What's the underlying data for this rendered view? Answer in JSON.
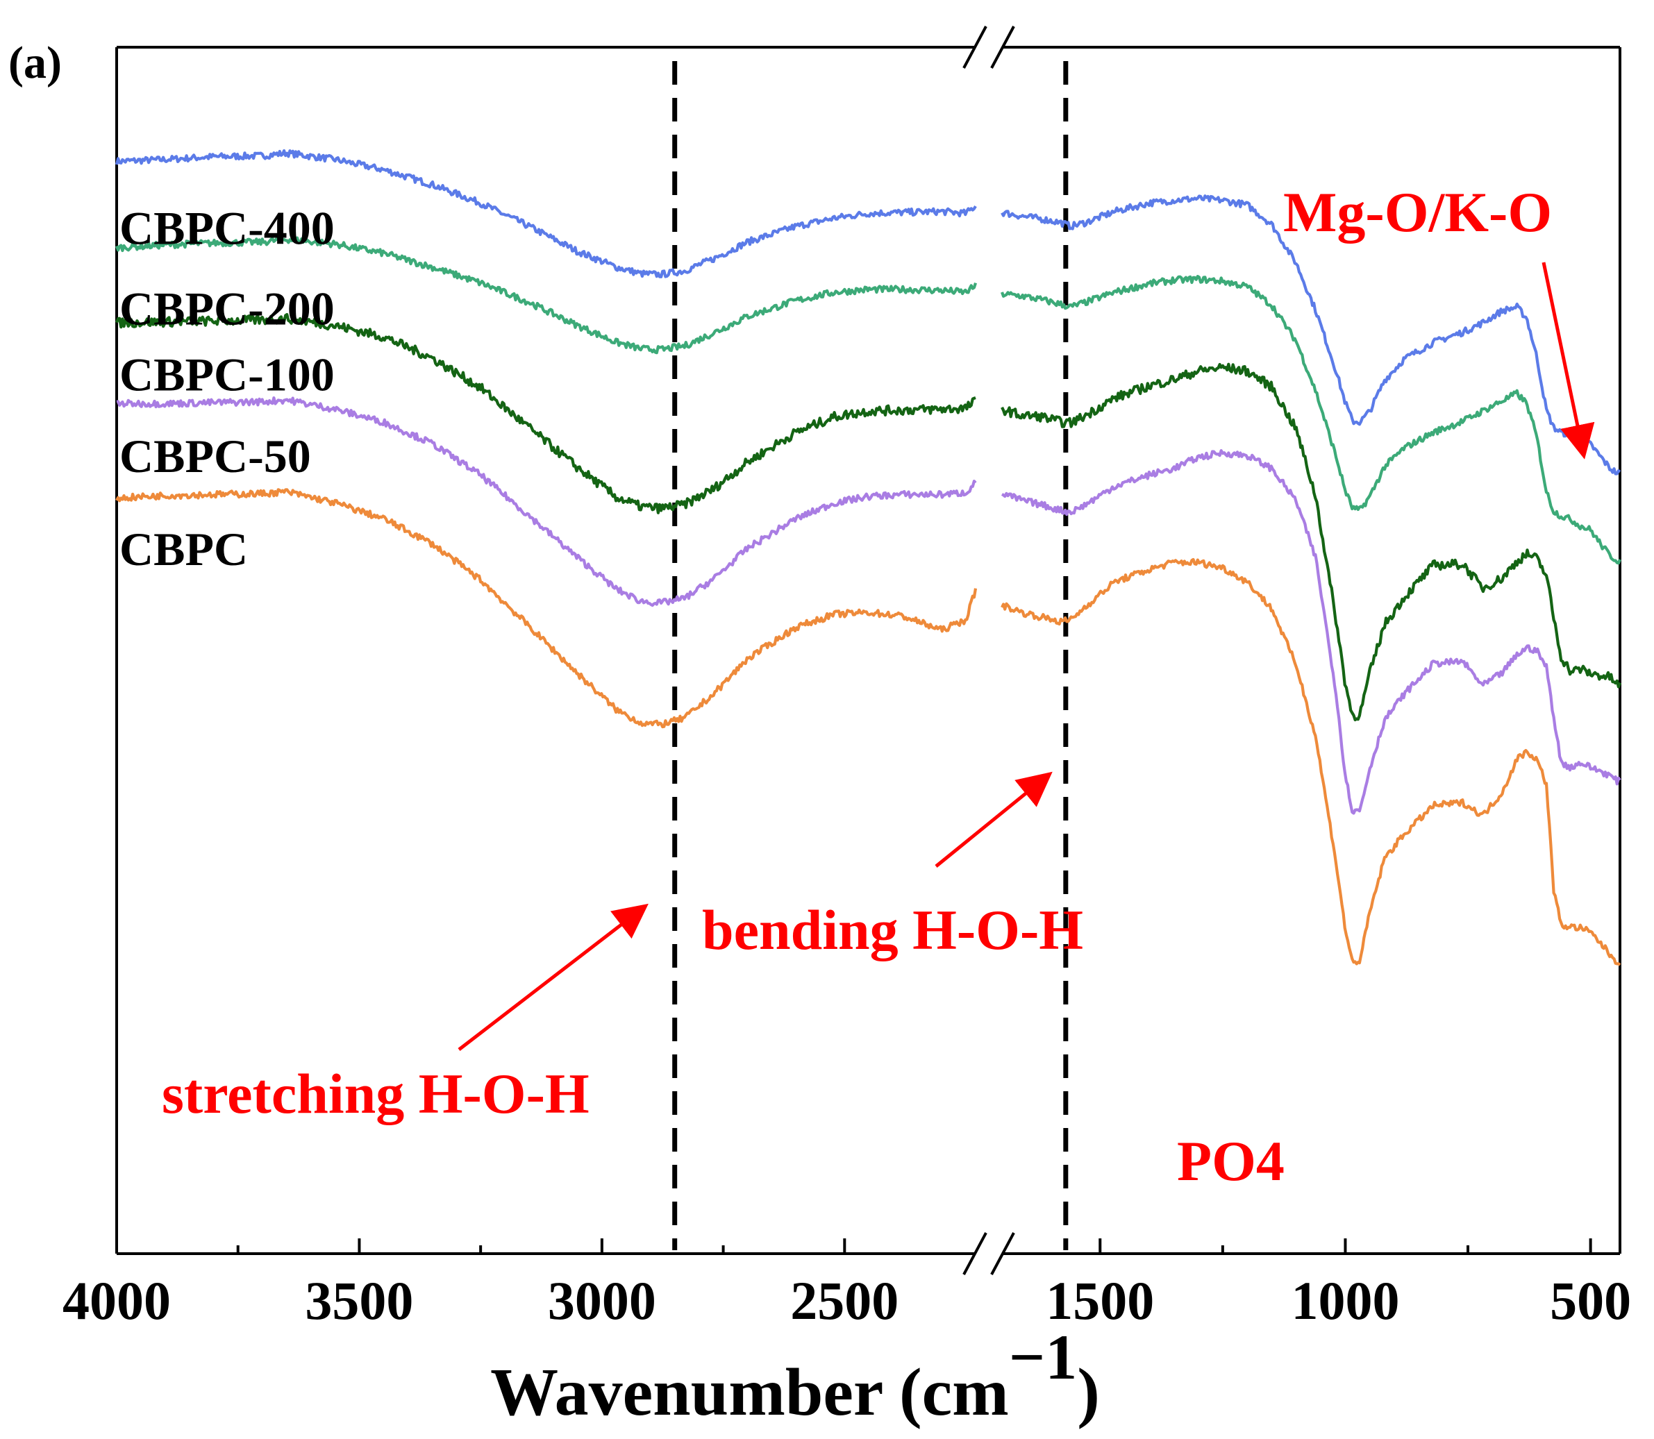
{
  "chart_data": {
    "type": "line",
    "panel_label": "(a)",
    "xlabel": "Wavenumber (cm",
    "xlabel_superscript": "−1",
    "xlabel_close": ")",
    "ylabel": "",
    "x_reversed": true,
    "x_break": [
      2230,
      1700
    ],
    "xlim_left": [
      4000,
      2230
    ],
    "xlim_right": [
      1700,
      440
    ],
    "x_ticks": [
      {
        "value": 4000,
        "label": "4000"
      },
      {
        "value": 3500,
        "label": "3500"
      },
      {
        "value": 3000,
        "label": "3000"
      },
      {
        "value": 2500,
        "label": "2500"
      },
      {
        "value": 1500,
        "label": "1500"
      },
      {
        "value": 1000,
        "label": "1000"
      },
      {
        "value": 500,
        "label": "500"
      }
    ],
    "reference_lines": [
      2850,
      1570
    ],
    "ylim": [
      -30,
      100
    ],
    "series": [
      {
        "name": "CBPC-400",
        "color": "#5b7be8",
        "noise": 0.35,
        "x": [
          4000,
          3900,
          3800,
          3700,
          3650,
          3550,
          3450,
          3350,
          3250,
          3150,
          3050,
          2970,
          2920,
          2880,
          2830,
          2770,
          2700,
          2600,
          2520,
          2450,
          2380,
          2300,
          2250,
          2230,
          1700,
          1660,
          1620,
          1580,
          1560,
          1530,
          1470,
          1400,
          1350,
          1300,
          1250,
          1200,
          1150,
          1100,
          1060,
          1020,
          1000,
          985,
          970,
          950,
          920,
          880,
          820,
          760,
          720,
          680,
          650,
          630,
          610,
          590,
          575,
          560,
          540,
          520,
          500,
          480,
          460,
          445
        ],
        "y": [
          87.7,
          87.9,
          88.2,
          88.3,
          88.6,
          87.9,
          86.8,
          85.2,
          83.2,
          80.7,
          78.0,
          76.3,
          75.6,
          75.5,
          75.9,
          77.2,
          79.0,
          80.7,
          81.6,
          82.1,
          82.2,
          82.3,
          82.1,
          82.9,
          82.2,
          81.8,
          81.5,
          81.1,
          80.7,
          81.1,
          82.3,
          83.2,
          83.5,
          83.7,
          83.5,
          83.0,
          80.9,
          76.7,
          71.6,
          65.3,
          61.7,
          59.7,
          59.6,
          60.8,
          64.1,
          66.4,
          68.2,
          69.3,
          70.3,
          71.6,
          72.0,
          70.8,
          66.7,
          60.9,
          59.0,
          58.5,
          58.2,
          57.5,
          57.2,
          55.9,
          54.6,
          54.1
        ],
        "label": "CBPC-400",
        "label_y": 80.9
      },
      {
        "name": "CBPC-200",
        "color": "#3caa78",
        "noise": 0.35,
        "x": [
          4000,
          3900,
          3800,
          3700,
          3650,
          3550,
          3450,
          3350,
          3250,
          3150,
          3050,
          2970,
          2920,
          2880,
          2830,
          2770,
          2700,
          2600,
          2520,
          2450,
          2380,
          2300,
          2250,
          2230,
          1700,
          1660,
          1620,
          1580,
          1560,
          1530,
          1470,
          1400,
          1350,
          1300,
          1250,
          1200,
          1150,
          1100,
          1060,
          1020,
          1000,
          985,
          970,
          950,
          920,
          880,
          820,
          760,
          720,
          680,
          650,
          630,
          610,
          590,
          575,
          560,
          540,
          520,
          500,
          480,
          460,
          445
        ],
        "y": [
          78.4,
          78.7,
          78.9,
          79.0,
          79.3,
          78.8,
          77.8,
          76.3,
          74.6,
          72.5,
          70.0,
          68.2,
          67.5,
          67.4,
          67.8,
          69.2,
          71.0,
          72.7,
          73.6,
          73.9,
          73.9,
          73.8,
          73.6,
          74.3,
          73.4,
          73.2,
          72.8,
          72.3,
          72.0,
          72.5,
          73.6,
          74.5,
          74.9,
          75.0,
          74.8,
          74.2,
          72.2,
          68.3,
          62.9,
          56.1,
          52.2,
          50.3,
          50.1,
          51.6,
          54.8,
          56.8,
          58.5,
          59.7,
          60.8,
          61.9,
          62.7,
          61.6,
          58.1,
          52.1,
          50.0,
          49.5,
          49.1,
          48.4,
          48.0,
          46.5,
          45.2,
          44.7
        ],
        "label": "CBPC-200",
        "label_y": 72.2
      },
      {
        "name": "CBPC-100",
        "color": "#146414",
        "noise": 0.5,
        "x": [
          4000,
          3900,
          3800,
          3700,
          3650,
          3550,
          3450,
          3350,
          3250,
          3150,
          3050,
          2970,
          2920,
          2880,
          2830,
          2770,
          2700,
          2600,
          2520,
          2450,
          2380,
          2300,
          2250,
          2230,
          1700,
          1660,
          1620,
          1580,
          1560,
          1530,
          1470,
          1400,
          1350,
          1300,
          1250,
          1200,
          1150,
          1100,
          1060,
          1020,
          1000,
          985,
          970,
          950,
          920,
          880,
          820,
          760,
          720,
          680,
          650,
          630,
          610,
          590,
          575,
          560,
          540,
          520,
          500,
          480,
          460,
          445
        ],
        "y": [
          70.3,
          70.4,
          70.5,
          70.6,
          70.8,
          70.0,
          68.8,
          66.5,
          63.3,
          59.0,
          54.7,
          51.5,
          50.5,
          50.3,
          50.7,
          52.4,
          55.3,
          58.5,
          60.2,
          60.8,
          60.9,
          61.0,
          61.1,
          61.9,
          61.0,
          60.3,
          60.2,
          59.6,
          59.5,
          60.3,
          62.2,
          63.5,
          64.2,
          65.1,
          65.5,
          65.1,
          63.4,
          58.8,
          51.5,
          38.7,
          31.4,
          27.9,
          28.1,
          32.6,
          37.8,
          40.7,
          44.2,
          44.3,
          41.7,
          42.8,
          44.6,
          45.4,
          44.9,
          43.1,
          38.5,
          34.3,
          32.7,
          33.0,
          32.5,
          32.3,
          32.1,
          31.3
        ],
        "label": "CBPC-100",
        "label_y": 65.1
      },
      {
        "name": "CBPC-50",
        "color": "#a97de3",
        "noise": 0.35,
        "x": [
          4000,
          3900,
          3800,
          3700,
          3650,
          3550,
          3450,
          3350,
          3250,
          3150,
          3050,
          2970,
          2920,
          2880,
          2830,
          2770,
          2700,
          2600,
          2520,
          2450,
          2380,
          2300,
          2250,
          2230,
          1700,
          1660,
          1620,
          1580,
          1560,
          1530,
          1470,
          1400,
          1350,
          1300,
          1250,
          1200,
          1150,
          1100,
          1060,
          1020,
          1000,
          985,
          970,
          950,
          920,
          880,
          820,
          760,
          720,
          680,
          650,
          630,
          610,
          590,
          575,
          560,
          540,
          520,
          500,
          480,
          460,
          445
        ],
        "y": [
          61.6,
          61.6,
          61.7,
          61.8,
          62.0,
          61.0,
          59.6,
          57.3,
          53.9,
          49.5,
          45.0,
          41.6,
          40.3,
          40.1,
          40.6,
          42.7,
          46.0,
          49.2,
          50.9,
          51.6,
          51.8,
          51.8,
          52.0,
          53.1,
          51.9,
          51.2,
          50.7,
          50.1,
          49.9,
          50.7,
          52.7,
          53.9,
          54.6,
          55.8,
          56.3,
          56.0,
          54.6,
          51.1,
          44.9,
          30.9,
          21.5,
          17.6,
          17.8,
          22.3,
          27.5,
          30.3,
          33.6,
          33.8,
          31.2,
          32.6,
          34.5,
          35.3,
          35.0,
          33.2,
          27.8,
          22.9,
          22.4,
          22.9,
          22.4,
          22.0,
          21.5,
          20.9
        ],
        "label": "CBPC-50",
        "label_y": 56.3
      },
      {
        "name": "CBPC",
        "color": "#ee8a3a",
        "noise": 0.35,
        "x": [
          4000,
          3900,
          3800,
          3700,
          3650,
          3550,
          3450,
          3350,
          3250,
          3150,
          3050,
          2970,
          2920,
          2880,
          2830,
          2770,
          2700,
          2600,
          2520,
          2450,
          2380,
          2300,
          2250,
          2230,
          1700,
          1660,
          1620,
          1580,
          1560,
          1530,
          1470,
          1400,
          1350,
          1300,
          1250,
          1200,
          1150,
          1100,
          1060,
          1020,
          1000,
          985,
          970,
          950,
          920,
          880,
          820,
          760,
          720,
          680,
          650,
          630,
          610,
          590,
          575,
          560,
          540,
          520,
          500,
          480,
          460,
          445
        ],
        "y": [
          51.4,
          51.7,
          51.8,
          51.9,
          52.1,
          50.9,
          49.2,
          46.5,
          42.6,
          37.6,
          32.5,
          28.6,
          27.2,
          27.0,
          27.7,
          30.3,
          34.1,
          37.5,
          38.9,
          39.1,
          38.7,
          37.2,
          38.3,
          41.5,
          39.9,
          39.1,
          38.6,
          38.1,
          38.3,
          39.7,
          42.4,
          43.7,
          44.5,
          44.5,
          43.9,
          42.4,
          39.5,
          33.4,
          25.6,
          12.6,
          4.9,
          1.3,
          1.6,
          6.8,
          12.6,
          15.2,
          18.3,
          18.6,
          17.2,
          19.7,
          23.3,
          24.1,
          23.3,
          20.6,
          9.2,
          5.4,
          5.2,
          5.1,
          4.6,
          3.5,
          2.2,
          1.4
        ],
        "label": "CBPC",
        "label_y": 46.3
      }
    ],
    "annotations": [
      {
        "text": "Mg-O/K-O",
        "color": "#ff0000"
      },
      {
        "text": "bending H-O-H",
        "color": "#ff0000"
      },
      {
        "text": "stretching H-O-H",
        "color": "#ff0000"
      },
      {
        "text": "PO4",
        "color": "#ff0000"
      }
    ]
  }
}
